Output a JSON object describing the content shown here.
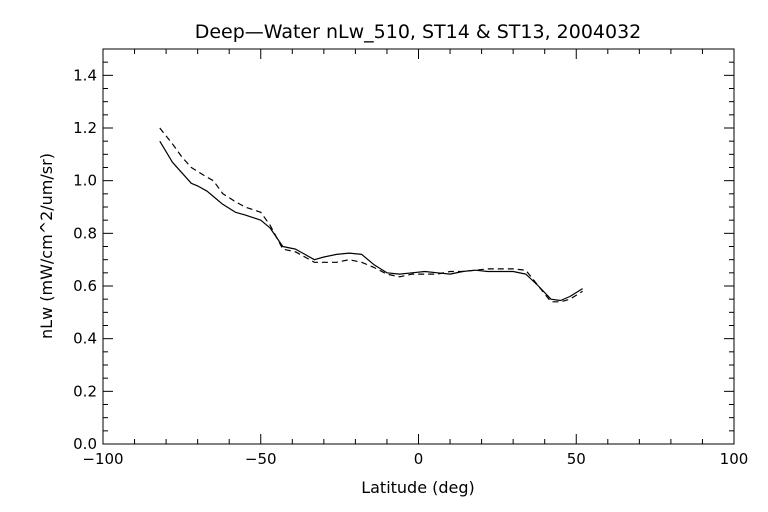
{
  "chart_data": {
    "type": "line",
    "title": "Deep—Water nLw_510, ST14 & ST13, 2004032",
    "xlabel": "Latitude (deg)",
    "ylabel": "nLw (mW/cm^2/um/sr)",
    "xlim": [
      -100,
      100
    ],
    "ylim": [
      0.0,
      1.5
    ],
    "x_ticks": [
      -100,
      -50,
      0,
      50,
      100
    ],
    "x_tick_labels": [
      "−100",
      "−50",
      "0",
      "50",
      "100"
    ],
    "y_ticks": [
      0.0,
      0.2,
      0.4,
      0.6,
      0.8,
      1.0,
      1.2,
      1.4
    ],
    "y_tick_labels": [
      "0.0",
      "0.2",
      "0.4",
      "0.6",
      "0.8",
      "1.0",
      "1.2",
      "1.4"
    ],
    "grid": false,
    "series": [
      {
        "style": "solid",
        "color": "#000000",
        "points": [
          [
            -82,
            1.15
          ],
          [
            -78,
            1.07
          ],
          [
            -75,
            1.03
          ],
          [
            -72,
            0.99
          ],
          [
            -70,
            0.98
          ],
          [
            -67,
            0.96
          ],
          [
            -65,
            0.94
          ],
          [
            -62,
            0.91
          ],
          [
            -58,
            0.88
          ],
          [
            -55,
            0.87
          ],
          [
            -50,
            0.85
          ],
          [
            -47,
            0.82
          ],
          [
            -43,
            0.75
          ],
          [
            -39,
            0.74
          ],
          [
            -36,
            0.72
          ],
          [
            -33,
            0.7
          ],
          [
            -30,
            0.71
          ],
          [
            -26,
            0.72
          ],
          [
            -22,
            0.725
          ],
          [
            -18,
            0.72
          ],
          [
            -14,
            0.68
          ],
          [
            -10,
            0.65
          ],
          [
            -6,
            0.645
          ],
          [
            -2,
            0.65
          ],
          [
            2,
            0.655
          ],
          [
            6,
            0.65
          ],
          [
            10,
            0.645
          ],
          [
            14,
            0.655
          ],
          [
            18,
            0.66
          ],
          [
            22,
            0.655
          ],
          [
            26,
            0.655
          ],
          [
            30,
            0.655
          ],
          [
            34,
            0.645
          ],
          [
            38,
            0.6
          ],
          [
            42,
            0.55
          ],
          [
            45,
            0.545
          ],
          [
            48,
            0.56
          ],
          [
            52,
            0.59
          ]
        ]
      },
      {
        "style": "dashed",
        "color": "#000000",
        "points": [
          [
            -82,
            1.2
          ],
          [
            -78,
            1.14
          ],
          [
            -75,
            1.09
          ],
          [
            -72,
            1.05
          ],
          [
            -68,
            1.02
          ],
          [
            -65,
            1.0
          ],
          [
            -62,
            0.95
          ],
          [
            -58,
            0.92
          ],
          [
            -55,
            0.9
          ],
          [
            -50,
            0.88
          ],
          [
            -47,
            0.83
          ],
          [
            -43,
            0.74
          ],
          [
            -39,
            0.73
          ],
          [
            -36,
            0.71
          ],
          [
            -33,
            0.69
          ],
          [
            -30,
            0.69
          ],
          [
            -26,
            0.69
          ],
          [
            -22,
            0.7
          ],
          [
            -18,
            0.69
          ],
          [
            -14,
            0.67
          ],
          [
            -10,
            0.645
          ],
          [
            -6,
            0.635
          ],
          [
            -2,
            0.645
          ],
          [
            2,
            0.645
          ],
          [
            6,
            0.645
          ],
          [
            10,
            0.655
          ],
          [
            14,
            0.655
          ],
          [
            18,
            0.66
          ],
          [
            22,
            0.665
          ],
          [
            26,
            0.665
          ],
          [
            30,
            0.665
          ],
          [
            34,
            0.66
          ],
          [
            38,
            0.6
          ],
          [
            42,
            0.54
          ],
          [
            45,
            0.54
          ],
          [
            48,
            0.55
          ],
          [
            52,
            0.58
          ]
        ]
      }
    ]
  }
}
